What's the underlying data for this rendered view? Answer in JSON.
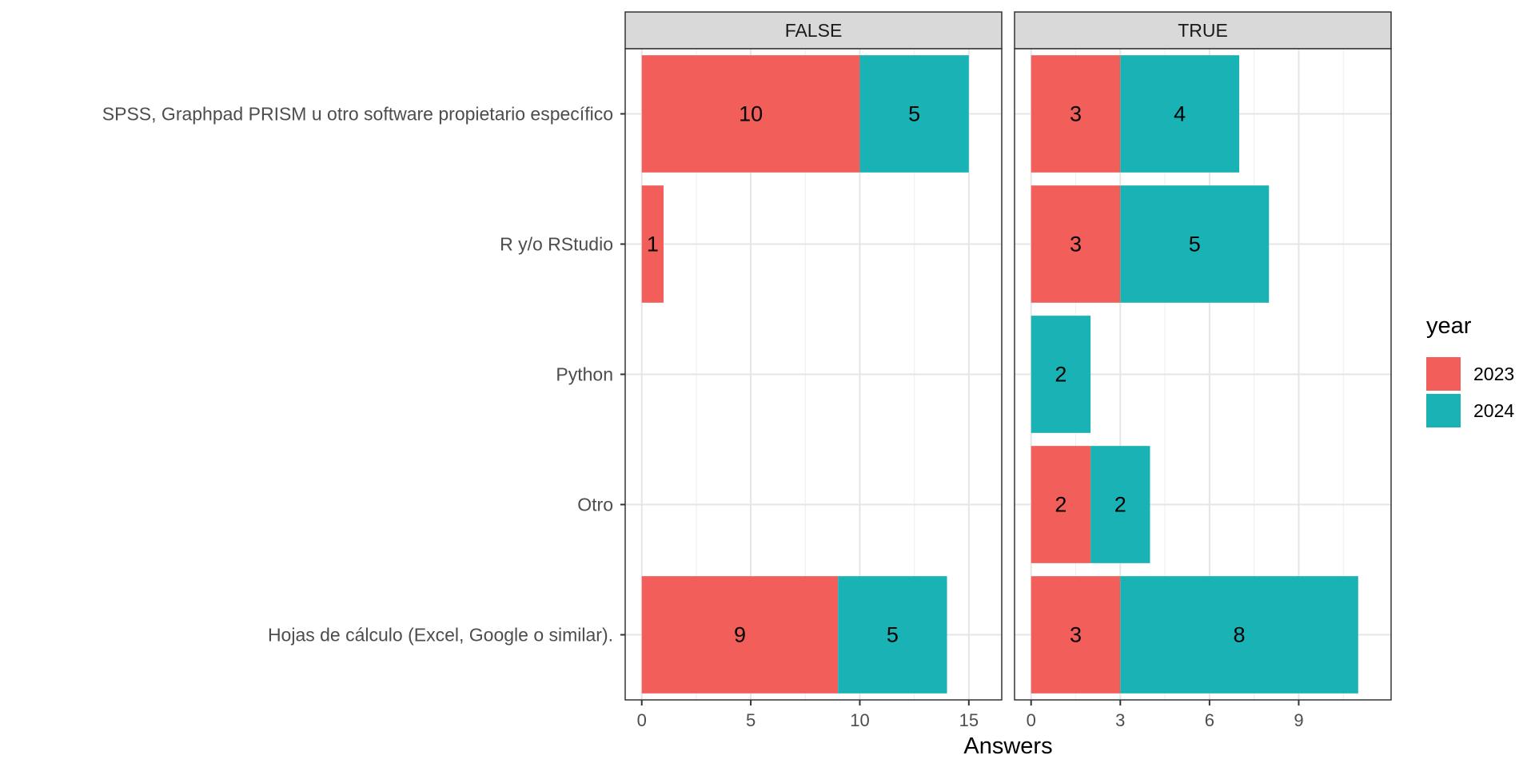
{
  "chart_data": {
    "type": "bar",
    "orientation": "horizontal",
    "stacked": true,
    "facet_var": "",
    "xlabel": "Answers",
    "ylabel": "",
    "categories": [
      "SPSS, Graphpad PRISM u otro software propietario específico",
      "R y/o RStudio",
      "Python",
      "Otro",
      "Hojas de cálculo (Excel, Google o similar)."
    ],
    "legend": {
      "title": "year",
      "position": "right",
      "entries": [
        {
          "label": "2023",
          "color": "#F25F5A"
        },
        {
          "label": "2024",
          "color": "#19B3B6"
        }
      ]
    },
    "grid": true,
    "panels": [
      {
        "strip": "FALSE",
        "xlim": [
          0,
          15.75
        ],
        "xticks": [
          0,
          5,
          10,
          15
        ],
        "series": [
          {
            "name": "2023",
            "values": [
              10,
              1,
              0,
              0,
              9
            ]
          },
          {
            "name": "2024",
            "values": [
              5,
              0,
              0,
              0,
              5
            ]
          }
        ]
      },
      {
        "strip": "TRUE",
        "xlim": [
          0,
          11.55
        ],
        "xticks": [
          0,
          3,
          6,
          9
        ],
        "series": [
          {
            "name": "2023",
            "values": [
              3,
              3,
              0,
              2,
              3
            ]
          },
          {
            "name": "2024",
            "values": [
              4,
              5,
              2,
              2,
              8
            ]
          }
        ]
      }
    ]
  }
}
